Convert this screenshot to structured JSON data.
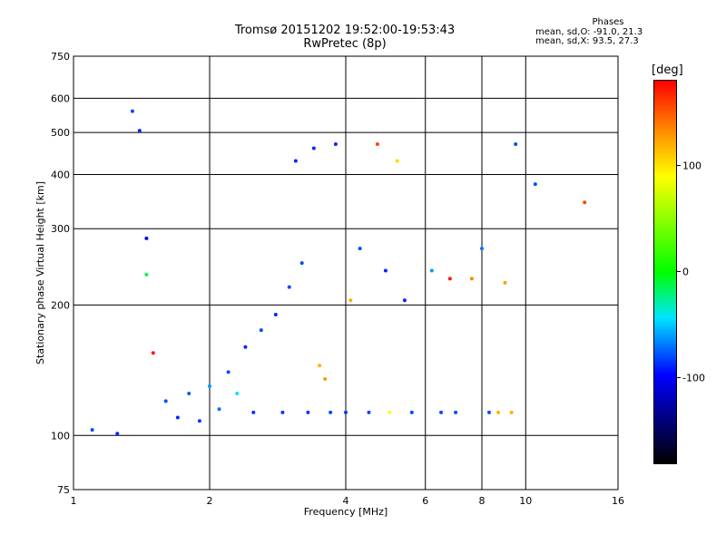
{
  "header": {
    "title": "Tromsø 20151202 19:52:00-19:53:43",
    "subtitle": "RwPretec (8p)",
    "stats_heading": "Phases",
    "stats_line1": "mean, sd,O: -91.0, 21.3",
    "stats_line2": "mean, sd,X:  93.5, 27.3"
  },
  "colorbar": {
    "title": "[deg]",
    "ticks": [
      {
        "label": "100",
        "value": 100
      },
      {
        "label": "0",
        "value": 0
      },
      {
        "label": "-100",
        "value": -100
      }
    ],
    "range": [
      -180,
      180
    ],
    "colors": [
      "#000000",
      "#0000ff",
      "#00e5ff",
      "#00ff00",
      "#ffff00",
      "#ff8a00",
      "#ff0000"
    ]
  },
  "chart_data": {
    "type": "scatter",
    "title": "Tromsø 20151202 19:52:00-19:53:43",
    "subtitle": "RwPretec (8p)",
    "xlabel": "Frequency [MHz]",
    "ylabel": "Stationary phase Virtual Height [km]",
    "x_scale": "log",
    "y_scale": "log",
    "xlim": [
      1,
      16
    ],
    "ylim": [
      75,
      750
    ],
    "x_ticks": [
      {
        "label": "1",
        "value": 1
      },
      {
        "label": "2",
        "value": 2
      },
      {
        "label": "4",
        "value": 4
      },
      {
        "label": "6",
        "value": 6
      },
      {
        "label": "8",
        "value": 8
      },
      {
        "label": "10",
        "value": 10
      },
      {
        "label": "16",
        "value": 16
      }
    ],
    "y_ticks": [
      {
        "label": "75",
        "value": 75
      },
      {
        "label": "100",
        "value": 100
      },
      {
        "label": "200",
        "value": 200
      },
      {
        "label": "300",
        "value": 300
      },
      {
        "label": "400",
        "value": 400
      },
      {
        "label": "500",
        "value": 500
      },
      {
        "label": "600",
        "value": 600
      },
      {
        "label": "750",
        "value": 750
      }
    ],
    "grid": true,
    "color_variable": "phase [deg]",
    "points": [
      {
        "x": 1.1,
        "y": 103,
        "phase": -100
      },
      {
        "x": 1.25,
        "y": 101,
        "phase": -110
      },
      {
        "x": 1.35,
        "y": 560,
        "phase": -100
      },
      {
        "x": 1.4,
        "y": 505,
        "phase": -110
      },
      {
        "x": 1.45,
        "y": 285,
        "phase": -120
      },
      {
        "x": 1.45,
        "y": 235,
        "phase": -20
      },
      {
        "x": 1.5,
        "y": 155,
        "phase": 170
      },
      {
        "x": 1.6,
        "y": 120,
        "phase": -100
      },
      {
        "x": 1.7,
        "y": 110,
        "phase": -110
      },
      {
        "x": 1.8,
        "y": 125,
        "phase": -95
      },
      {
        "x": 1.9,
        "y": 108,
        "phase": -105
      },
      {
        "x": 2.0,
        "y": 130,
        "phase": -80
      },
      {
        "x": 2.1,
        "y": 115,
        "phase": -90
      },
      {
        "x": 2.2,
        "y": 140,
        "phase": -100
      },
      {
        "x": 2.3,
        "y": 125,
        "phase": -60
      },
      {
        "x": 2.4,
        "y": 160,
        "phase": -110
      },
      {
        "x": 2.5,
        "y": 113,
        "phase": -105
      },
      {
        "x": 2.6,
        "y": 175,
        "phase": -100
      },
      {
        "x": 2.8,
        "y": 190,
        "phase": -110
      },
      {
        "x": 2.9,
        "y": 113,
        "phase": -105
      },
      {
        "x": 3.0,
        "y": 220,
        "phase": -100
      },
      {
        "x": 3.1,
        "y": 430,
        "phase": -110
      },
      {
        "x": 3.2,
        "y": 250,
        "phase": -100
      },
      {
        "x": 3.3,
        "y": 113,
        "phase": -105
      },
      {
        "x": 3.4,
        "y": 460,
        "phase": -110
      },
      {
        "x": 3.5,
        "y": 145,
        "phase": 100
      },
      {
        "x": 3.6,
        "y": 135,
        "phase": 110
      },
      {
        "x": 3.7,
        "y": 113,
        "phase": -100
      },
      {
        "x": 3.8,
        "y": 470,
        "phase": -110
      },
      {
        "x": 4.0,
        "y": 113,
        "phase": -105
      },
      {
        "x": 4.1,
        "y": 205,
        "phase": 100
      },
      {
        "x": 4.3,
        "y": 270,
        "phase": -100
      },
      {
        "x": 4.5,
        "y": 113,
        "phase": -100
      },
      {
        "x": 4.7,
        "y": 470,
        "phase": 150
      },
      {
        "x": 4.9,
        "y": 240,
        "phase": -110
      },
      {
        "x": 5.0,
        "y": 113,
        "phase": 60
      },
      {
        "x": 5.2,
        "y": 430,
        "phase": 80
      },
      {
        "x": 5.4,
        "y": 205,
        "phase": -110
      },
      {
        "x": 5.6,
        "y": 113,
        "phase": -100
      },
      {
        "x": 6.2,
        "y": 240,
        "phase": -80
      },
      {
        "x": 6.5,
        "y": 113,
        "phase": -100
      },
      {
        "x": 6.8,
        "y": 230,
        "phase": 170
      },
      {
        "x": 7.0,
        "y": 113,
        "phase": -100
      },
      {
        "x": 7.6,
        "y": 230,
        "phase": 120
      },
      {
        "x": 8.0,
        "y": 270,
        "phase": -90
      },
      {
        "x": 8.3,
        "y": 113,
        "phase": -100
      },
      {
        "x": 8.7,
        "y": 113,
        "phase": 100
      },
      {
        "x": 9.0,
        "y": 225,
        "phase": 110
      },
      {
        "x": 9.3,
        "y": 113,
        "phase": 100
      },
      {
        "x": 9.5,
        "y": 470,
        "phase": -100
      },
      {
        "x": 10.5,
        "y": 380,
        "phase": -100
      },
      {
        "x": 13.5,
        "y": 345,
        "phase": 150
      }
    ]
  }
}
